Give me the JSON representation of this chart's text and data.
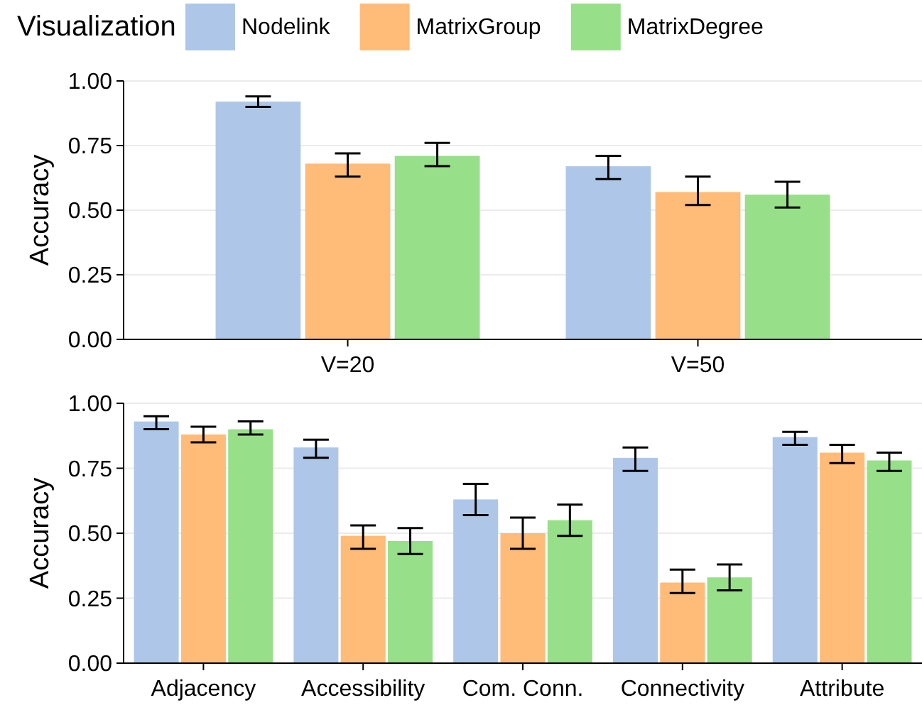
{
  "chart_data": [
    {
      "type": "bar",
      "ylabel": "Accuracy",
      "legend_title": "Visualization",
      "legend": "top",
      "grid": "y",
      "categories": [
        "V=20",
        "V=50"
      ],
      "ylim": [
        0,
        1
      ],
      "yticks": [
        {
          "value": 0,
          "label": "0.00"
        },
        {
          "value": 0.25,
          "label": "0.25"
        },
        {
          "value": 0.5,
          "label": "0.50"
        },
        {
          "value": 0.75,
          "label": "0.75"
        },
        {
          "value": 1,
          "label": "1.00"
        }
      ],
      "series": [
        {
          "name": "Nodelink",
          "color": "#aec7e8",
          "values": [
            0.92,
            0.67
          ],
          "errors": [
            [
              0.9,
              0.94
            ],
            [
              0.62,
              0.71
            ]
          ]
        },
        {
          "name": "MatrixGroup",
          "color": "#ffbb78",
          "values": [
            0.68,
            0.57
          ],
          "errors": [
            [
              0.63,
              0.72
            ],
            [
              0.52,
              0.63
            ]
          ]
        },
        {
          "name": "MatrixDegree",
          "color": "#98df8a",
          "values": [
            0.71,
            0.56
          ],
          "errors": [
            [
              0.67,
              0.76
            ],
            [
              0.51,
              0.61
            ]
          ]
        }
      ]
    },
    {
      "type": "bar",
      "ylabel": "Accuracy",
      "grid": "y",
      "categories": [
        "Adjacency",
        "Accessibility",
        "Com. Conn.",
        "Connectivity",
        "Attribute"
      ],
      "ylim": [
        0,
        1
      ],
      "yticks": [
        {
          "value": 0,
          "label": "0.00"
        },
        {
          "value": 0.25,
          "label": "0.25"
        },
        {
          "value": 0.5,
          "label": "0.50"
        },
        {
          "value": 0.75,
          "label": "0.75"
        },
        {
          "value": 1,
          "label": "1.00"
        }
      ],
      "series": [
        {
          "color": "#aec7e8",
          "values": [
            0.93,
            0.83,
            0.63,
            0.79,
            0.87
          ],
          "errors": [
            [
              0.9,
              0.95
            ],
            [
              0.79,
              0.86
            ],
            [
              0.57,
              0.69
            ],
            [
              0.74,
              0.83
            ],
            [
              0.84,
              0.89
            ]
          ]
        },
        {
          "color": "#ffbb78",
          "values": [
            0.88,
            0.49,
            0.5,
            0.31,
            0.81
          ],
          "errors": [
            [
              0.85,
              0.91
            ],
            [
              0.44,
              0.53
            ],
            [
              0.44,
              0.56
            ],
            [
              0.27,
              0.36
            ],
            [
              0.77,
              0.84
            ]
          ]
        },
        {
          "color": "#98df8a",
          "values": [
            0.9,
            0.47,
            0.55,
            0.33,
            0.78
          ],
          "errors": [
            [
              0.88,
              0.93
            ],
            [
              0.42,
              0.52
            ],
            [
              0.49,
              0.61
            ],
            [
              0.28,
              0.38
            ],
            [
              0.74,
              0.81
            ]
          ]
        }
      ]
    }
  ]
}
